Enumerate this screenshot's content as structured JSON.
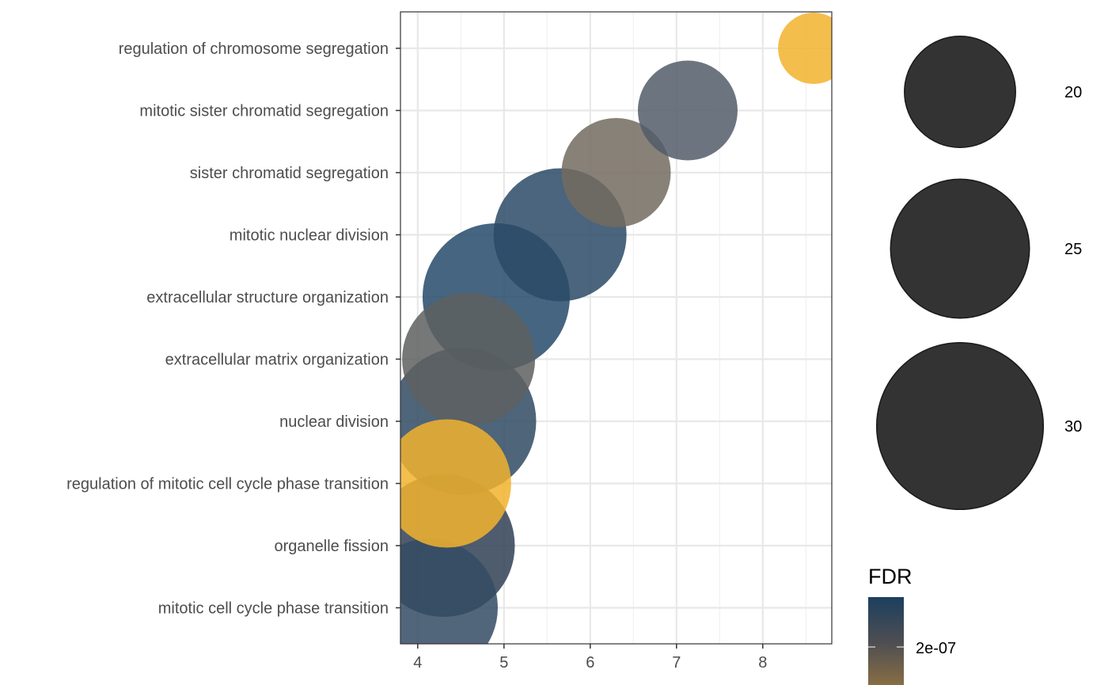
{
  "chart_data": {
    "type": "scatter",
    "title": "",
    "xlabel": "",
    "ylabel": "",
    "xlim": [
      3.8,
      8.8
    ],
    "x_ticks": [
      4,
      5,
      6,
      7,
      8
    ],
    "grid": true,
    "categories": [
      "regulation of chromosome segregation",
      "mitotic sister chromatid segregation",
      "sister chromatid segregation",
      "mitotic nuclear division",
      "extracellular structure organization",
      "extracellular matrix organization",
      "nuclear division",
      "regulation of mitotic cell cycle phase transition",
      "organelle fission",
      "mitotic cell cycle phase transition"
    ],
    "points": [
      {
        "term": "regulation of chromosome segregation",
        "x": 8.59,
        "count": 15,
        "color": "#F2B32E"
      },
      {
        "term": "mitotic sister chromatid segregation",
        "x": 7.13,
        "count": 21,
        "color": "#525C68"
      },
      {
        "term": "sister chromatid segregation",
        "x": 6.3,
        "count": 23,
        "color": "#736B5F"
      },
      {
        "term": "mitotic nuclear division",
        "x": 5.65,
        "count": 28,
        "color": "#2A4A66"
      },
      {
        "term": "extracellular structure organization",
        "x": 4.91,
        "count": 31,
        "color": "#254A6A"
      },
      {
        "term": "extracellular matrix organization",
        "x": 4.59,
        "count": 28,
        "color": "#5E6060"
      },
      {
        "term": "nuclear division",
        "x": 4.52,
        "count": 31,
        "color": "#2F4A63"
      },
      {
        "term": "regulation of mitotic cell cycle phase transition",
        "x": 4.34,
        "count": 27,
        "color": "#F2B32E"
      },
      {
        "term": "organelle fission",
        "x": 4.3,
        "count": 30,
        "color": "#2F3F55"
      },
      {
        "term": "mitotic cell cycle phase transition",
        "x": 4.13,
        "count": 29,
        "color": "#344B64"
      }
    ],
    "size_legend": {
      "values": [
        20,
        25,
        30
      ],
      "labels": [
        "20",
        "25",
        "30"
      ]
    },
    "color_legend": {
      "title": "FDR",
      "tick_labels": [
        "2e-07"
      ],
      "gradient_colors": [
        "#1C3F5E",
        "#4E4E52",
        "#8C7043"
      ]
    }
  }
}
